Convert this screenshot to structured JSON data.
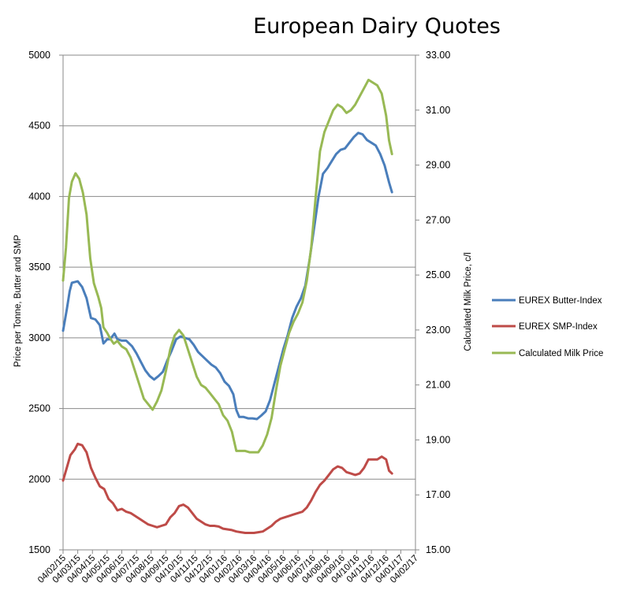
{
  "chart_data": {
    "type": "line",
    "title": "European Dairy Quotes",
    "ylabel": "Price per Tonne, Butter and SMP",
    "y2label": "Calculated Milk Price, c/l",
    "ylim": [
      1500,
      5000
    ],
    "y2lim": [
      15.0,
      33.0
    ],
    "yticks": [
      "1500",
      "2000",
      "2500",
      "3000",
      "3500",
      "4000",
      "4500",
      "5000"
    ],
    "y2ticks": [
      "15.00",
      "17.00",
      "19.00",
      "21.00",
      "23.00",
      "25.00",
      "27.00",
      "29.00",
      "31.00",
      "33.00"
    ],
    "x_labels": [
      "04/02/15",
      "04/03/15",
      "04/04/15",
      "04/05/15",
      "04/06/15",
      "04/07/15",
      "04/08/15",
      "04/09/15",
      "04/10/15",
      "04/11/15",
      "04/12/15",
      "04/01/16",
      "04/02/16",
      "04/03/16",
      "04/04/16",
      "04/05/16",
      "04/06/16",
      "04/07/16",
      "04/08/16",
      "04/09/16",
      "04/10/16",
      "04/11/16",
      "04/12/16",
      "04/01/17",
      "04/02/17"
    ],
    "grid": true,
    "legend_position": "right",
    "series": [
      {
        "name": "EUREX Butter-Index",
        "color": "#4a7ebb",
        "axis": "left",
        "points": [
          [
            0,
            3050
          ],
          [
            0.25,
            3200
          ],
          [
            0.45,
            3330
          ],
          [
            0.6,
            3390
          ],
          [
            1.0,
            3400
          ],
          [
            1.3,
            3360
          ],
          [
            1.6,
            3280
          ],
          [
            1.9,
            3140
          ],
          [
            2.2,
            3130
          ],
          [
            2.5,
            3090
          ],
          [
            2.75,
            2960
          ],
          [
            3.0,
            2990
          ],
          [
            3.2,
            2990
          ],
          [
            3.5,
            3030
          ],
          [
            3.7,
            2990
          ],
          [
            4.0,
            2980
          ],
          [
            4.3,
            2980
          ],
          [
            4.7,
            2940
          ],
          [
            5.0,
            2890
          ],
          [
            5.3,
            2830
          ],
          [
            5.6,
            2770
          ],
          [
            5.9,
            2730
          ],
          [
            6.2,
            2705
          ],
          [
            6.5,
            2730
          ],
          [
            6.8,
            2760
          ],
          [
            7.1,
            2840
          ],
          [
            7.4,
            2910
          ],
          [
            7.7,
            2990
          ],
          [
            8.0,
            3010
          ],
          [
            8.3,
            3000
          ],
          [
            8.6,
            2990
          ],
          [
            8.9,
            2950
          ],
          [
            9.2,
            2900
          ],
          [
            9.5,
            2870
          ],
          [
            9.8,
            2840
          ],
          [
            10.1,
            2810
          ],
          [
            10.4,
            2790
          ],
          [
            10.7,
            2750
          ],
          [
            11.0,
            2690
          ],
          [
            11.3,
            2660
          ],
          [
            11.6,
            2600
          ],
          [
            11.8,
            2490
          ],
          [
            12.0,
            2440
          ],
          [
            12.3,
            2440
          ],
          [
            12.6,
            2430
          ],
          [
            12.9,
            2430
          ],
          [
            13.2,
            2425
          ],
          [
            13.5,
            2450
          ],
          [
            13.8,
            2480
          ],
          [
            14.1,
            2560
          ],
          [
            14.4,
            2680
          ],
          [
            14.7,
            2800
          ],
          [
            15.0,
            2920
          ],
          [
            15.3,
            3020
          ],
          [
            15.6,
            3140
          ],
          [
            15.9,
            3220
          ],
          [
            16.2,
            3280
          ],
          [
            16.5,
            3370
          ],
          [
            16.8,
            3560
          ],
          [
            17.1,
            3780
          ],
          [
            17.4,
            4000
          ],
          [
            17.7,
            4160
          ],
          [
            18.0,
            4200
          ],
          [
            18.3,
            4250
          ],
          [
            18.6,
            4300
          ],
          [
            18.9,
            4330
          ],
          [
            19.2,
            4340
          ],
          [
            19.5,
            4380
          ],
          [
            19.8,
            4420
          ],
          [
            20.1,
            4450
          ],
          [
            20.4,
            4440
          ],
          [
            20.7,
            4400
          ],
          [
            21.0,
            4380
          ],
          [
            21.3,
            4360
          ],
          [
            21.6,
            4300
          ],
          [
            21.9,
            4220
          ],
          [
            22.2,
            4100
          ],
          [
            22.4,
            4030
          ]
        ]
      },
      {
        "name": "EUREX SMP-Index",
        "color": "#be4b48",
        "axis": "left",
        "points": [
          [
            0,
            1990
          ],
          [
            0.25,
            2080
          ],
          [
            0.5,
            2170
          ],
          [
            0.8,
            2210
          ],
          [
            1.0,
            2250
          ],
          [
            1.3,
            2240
          ],
          [
            1.6,
            2190
          ],
          [
            1.9,
            2080
          ],
          [
            2.2,
            2010
          ],
          [
            2.5,
            1950
          ],
          [
            2.8,
            1930
          ],
          [
            3.1,
            1860
          ],
          [
            3.4,
            1830
          ],
          [
            3.7,
            1780
          ],
          [
            4.0,
            1790
          ],
          [
            4.3,
            1770
          ],
          [
            4.6,
            1760
          ],
          [
            4.9,
            1740
          ],
          [
            5.2,
            1720
          ],
          [
            5.5,
            1700
          ],
          [
            5.8,
            1680
          ],
          [
            6.1,
            1670
          ],
          [
            6.4,
            1660
          ],
          [
            6.7,
            1670
          ],
          [
            7.0,
            1680
          ],
          [
            7.3,
            1730
          ],
          [
            7.6,
            1760
          ],
          [
            7.9,
            1810
          ],
          [
            8.2,
            1820
          ],
          [
            8.5,
            1800
          ],
          [
            8.8,
            1760
          ],
          [
            9.1,
            1720
          ],
          [
            9.4,
            1700
          ],
          [
            9.7,
            1680
          ],
          [
            10.0,
            1670
          ],
          [
            10.3,
            1670
          ],
          [
            10.6,
            1665
          ],
          [
            10.9,
            1650
          ],
          [
            11.2,
            1645
          ],
          [
            11.5,
            1640
          ],
          [
            11.8,
            1630
          ],
          [
            12.1,
            1625
          ],
          [
            12.4,
            1620
          ],
          [
            12.7,
            1620
          ],
          [
            13.0,
            1620
          ],
          [
            13.3,
            1625
          ],
          [
            13.6,
            1630
          ],
          [
            13.9,
            1650
          ],
          [
            14.2,
            1670
          ],
          [
            14.5,
            1700
          ],
          [
            14.8,
            1720
          ],
          [
            15.1,
            1730
          ],
          [
            15.4,
            1740
          ],
          [
            15.7,
            1750
          ],
          [
            16.0,
            1760
          ],
          [
            16.3,
            1770
          ],
          [
            16.6,
            1800
          ],
          [
            16.9,
            1850
          ],
          [
            17.2,
            1910
          ],
          [
            17.5,
            1960
          ],
          [
            17.8,
            1990
          ],
          [
            18.1,
            2030
          ],
          [
            18.4,
            2070
          ],
          [
            18.7,
            2090
          ],
          [
            19.0,
            2080
          ],
          [
            19.3,
            2050
          ],
          [
            19.6,
            2040
          ],
          [
            19.9,
            2030
          ],
          [
            20.2,
            2040
          ],
          [
            20.5,
            2080
          ],
          [
            20.8,
            2140
          ],
          [
            21.1,
            2140
          ],
          [
            21.4,
            2140
          ],
          [
            21.7,
            2160
          ],
          [
            22.0,
            2140
          ],
          [
            22.2,
            2060
          ],
          [
            22.4,
            2040
          ]
        ]
      },
      {
        "name": "Calculated Milk Price",
        "color": "#98b954",
        "axis": "right",
        "points": [
          [
            0,
            24.8
          ],
          [
            0.2,
            26.0
          ],
          [
            0.4,
            27.8
          ],
          [
            0.6,
            28.4
          ],
          [
            0.85,
            28.7
          ],
          [
            1.1,
            28.5
          ],
          [
            1.35,
            28.0
          ],
          [
            1.6,
            27.2
          ],
          [
            1.85,
            25.6
          ],
          [
            2.1,
            24.7
          ],
          [
            2.4,
            24.2
          ],
          [
            2.6,
            23.8
          ],
          [
            2.75,
            23.1
          ],
          [
            3.0,
            22.9
          ],
          [
            3.2,
            22.7
          ],
          [
            3.45,
            22.5
          ],
          [
            3.7,
            22.6
          ],
          [
            4.0,
            22.4
          ],
          [
            4.3,
            22.3
          ],
          [
            4.6,
            22.0
          ],
          [
            4.9,
            21.5
          ],
          [
            5.2,
            21.0
          ],
          [
            5.5,
            20.5
          ],
          [
            5.8,
            20.3
          ],
          [
            6.1,
            20.1
          ],
          [
            6.4,
            20.4
          ],
          [
            6.7,
            20.8
          ],
          [
            7.0,
            21.5
          ],
          [
            7.3,
            22.3
          ],
          [
            7.6,
            22.8
          ],
          [
            7.9,
            23.0
          ],
          [
            8.2,
            22.8
          ],
          [
            8.5,
            22.3
          ],
          [
            8.8,
            21.8
          ],
          [
            9.1,
            21.3
          ],
          [
            9.4,
            21.0
          ],
          [
            9.7,
            20.9
          ],
          [
            10.0,
            20.7
          ],
          [
            10.3,
            20.5
          ],
          [
            10.6,
            20.3
          ],
          [
            10.9,
            19.9
          ],
          [
            11.2,
            19.7
          ],
          [
            11.5,
            19.3
          ],
          [
            11.8,
            18.6
          ],
          [
            12.1,
            18.6
          ],
          [
            12.4,
            18.6
          ],
          [
            12.7,
            18.55
          ],
          [
            13.0,
            18.55
          ],
          [
            13.3,
            18.55
          ],
          [
            13.6,
            18.8
          ],
          [
            13.9,
            19.2
          ],
          [
            14.2,
            19.8
          ],
          [
            14.5,
            20.8
          ],
          [
            14.8,
            21.7
          ],
          [
            15.1,
            22.3
          ],
          [
            15.4,
            22.9
          ],
          [
            15.7,
            23.3
          ],
          [
            16.0,
            23.6
          ],
          [
            16.3,
            24.0
          ],
          [
            16.6,
            24.8
          ],
          [
            16.9,
            26.0
          ],
          [
            17.2,
            27.8
          ],
          [
            17.5,
            29.5
          ],
          [
            17.8,
            30.2
          ],
          [
            18.1,
            30.6
          ],
          [
            18.4,
            31.0
          ],
          [
            18.7,
            31.2
          ],
          [
            19.0,
            31.1
          ],
          [
            19.3,
            30.9
          ],
          [
            19.6,
            31.0
          ],
          [
            19.9,
            31.2
          ],
          [
            20.2,
            31.5
          ],
          [
            20.5,
            31.8
          ],
          [
            20.8,
            32.1
          ],
          [
            21.1,
            32.0
          ],
          [
            21.4,
            31.9
          ],
          [
            21.7,
            31.6
          ],
          [
            22.0,
            30.8
          ],
          [
            22.2,
            29.9
          ],
          [
            22.4,
            29.4
          ]
        ]
      }
    ]
  }
}
